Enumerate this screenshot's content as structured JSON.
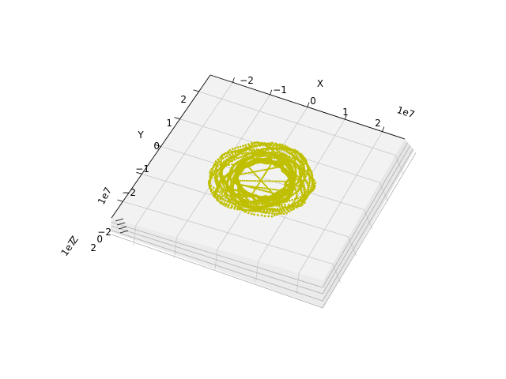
{
  "chart_data": {
    "type": "scatter",
    "projection": "3d",
    "x": {
      "label": "X",
      "ticks": [
        -2,
        -1,
        0,
        1,
        2
      ],
      "tick_labels": [
        "−2",
        "−1",
        "0",
        "1",
        "2"
      ],
      "offset_text": "1e7",
      "range": [
        -2.6,
        2.6
      ]
    },
    "y": {
      "label": "Y",
      "ticks": [
        2,
        1,
        0,
        -1,
        -2
      ],
      "tick_labels": [
        "2",
        "1",
        "0",
        "−1",
        "−2"
      ],
      "offset_text": "1e7",
      "range": [
        -2.6,
        2.6
      ]
    },
    "z": {
      "label": "Z",
      "ticks": [
        -2,
        0,
        2
      ],
      "tick_labels": [
        "−2",
        "0",
        "2"
      ],
      "offset_text": "1e7",
      "range": [
        -2.5,
        2.5
      ]
    },
    "grid": true,
    "series": [
      {
        "color": "#bfbf00",
        "marker": "dot",
        "description_of_shape": "dense tangled ring of trajectories around the origin",
        "ring_inner_radius": 0.55,
        "ring_outer_radius": 1.25,
        "num_points": 2600
      }
    ]
  }
}
